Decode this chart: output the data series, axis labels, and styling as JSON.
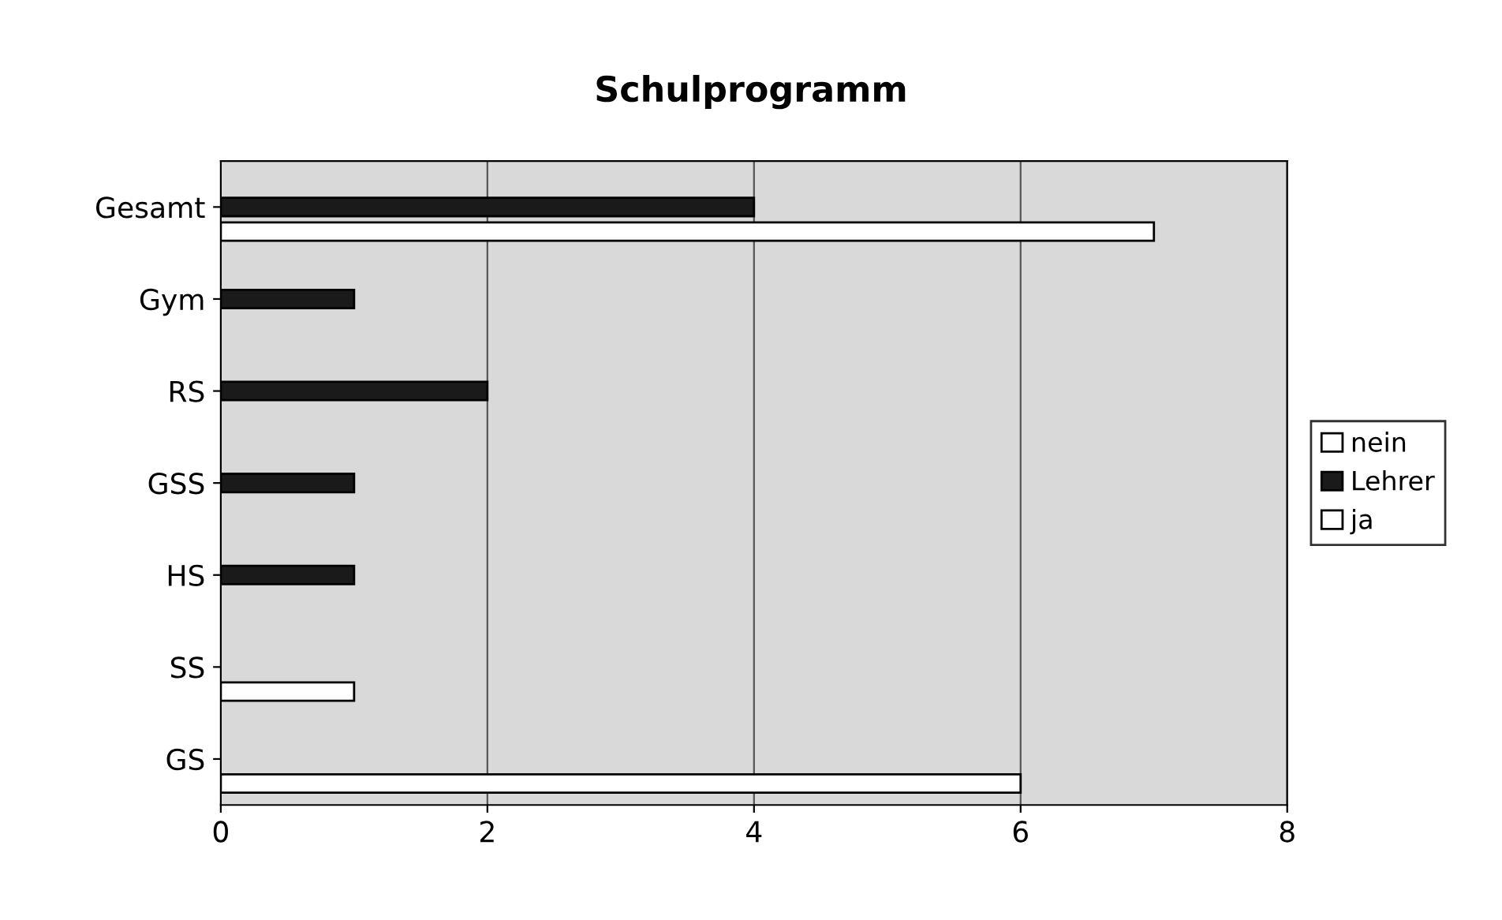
{
  "chart_data": {
    "type": "bar",
    "orientation": "horizontal",
    "title": "Schulprogramm",
    "categories": [
      "Gesamt",
      "Gym",
      "RS",
      "GSS",
      "HS",
      "SS",
      "GS"
    ],
    "series": [
      {
        "name": "nein",
        "color": "#ffffff",
        "values": [
          null,
          null,
          null,
          null,
          null,
          null,
          null
        ]
      },
      {
        "name": "Lehrer",
        "color": "#1a1a1a",
        "values": [
          4,
          1,
          2,
          1,
          1,
          null,
          null
        ]
      },
      {
        "name": "ja",
        "color": "#ffffff",
        "values": [
          7,
          null,
          null,
          null,
          null,
          1,
          6
        ]
      }
    ],
    "xlim": [
      0,
      8
    ],
    "xticks": [
      0,
      2,
      4,
      6,
      8
    ],
    "grid": "x",
    "legend": "right"
  }
}
